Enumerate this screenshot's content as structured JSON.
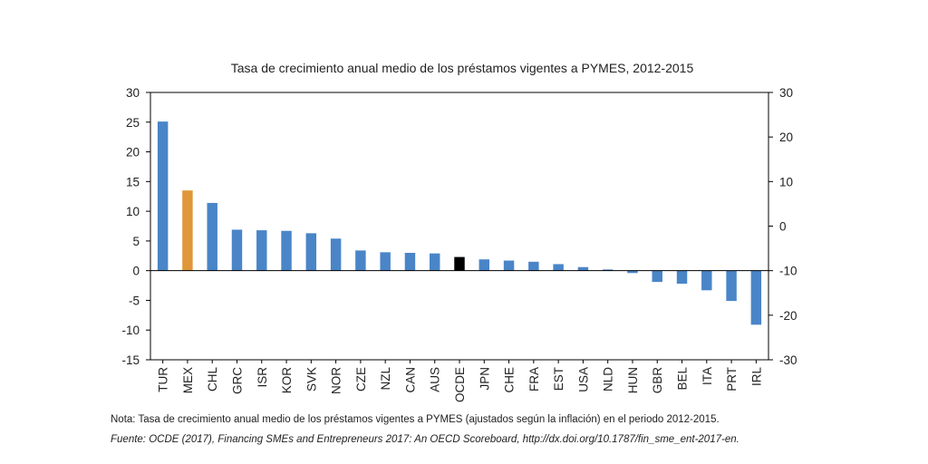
{
  "chart_data": {
    "type": "bar",
    "title": "Tasa de crecimiento anual medio de los préstamos vigentes a PYMES, 2012-2015",
    "categories": [
      "TUR",
      "MEX",
      "CHL",
      "GRC",
      "ISR",
      "KOR",
      "SVK",
      "NOR",
      "CZE",
      "NZL",
      "CAN",
      "AUS",
      "OCDE",
      "JPN",
      "CHE",
      "FRA",
      "EST",
      "USA",
      "NLD",
      "HUN",
      "GBR",
      "BEL",
      "ITA",
      "PRT",
      "IRL"
    ],
    "values": [
      25.1,
      13.5,
      11.4,
      6.9,
      6.8,
      6.7,
      6.3,
      5.4,
      3.4,
      3.1,
      3.0,
      2.9,
      2.3,
      1.9,
      1.7,
      1.5,
      1.1,
      0.6,
      0.2,
      -0.4,
      -1.9,
      -2.2,
      -3.3,
      -5.1,
      -9.1
    ],
    "highlight": {
      "MEX": "#e0973a",
      "OCDE": "#000000"
    },
    "colors": {
      "bar": "#4a85c8",
      "axis": "#000000"
    },
    "ylim": [
      -15,
      30
    ],
    "yticks": [
      -15,
      -10,
      -5,
      0,
      5,
      10,
      15,
      20,
      25,
      30
    ],
    "y2lim": [
      -30,
      30
    ],
    "y2ticks": [
      -30,
      -20,
      -10,
      0,
      10,
      20,
      30
    ],
    "xlabel": "",
    "ylabel": "",
    "grid": false,
    "legend": "none"
  },
  "notes": {
    "note": "Nota: Tasa de crecimiento anual medio de los préstamos vigentes a PYMES (ajustados según la inflación) en el periodo 2012-2015.",
    "source_prefix": "Fuente: OCDE (2017), ",
    "source_title": "Financing SMEs and Entrepreneurs 2017: An OECD Scoreboard",
    "source_suffix": ", http://dx.doi.org/10.1787/fin_sme_ent-2017-en."
  }
}
